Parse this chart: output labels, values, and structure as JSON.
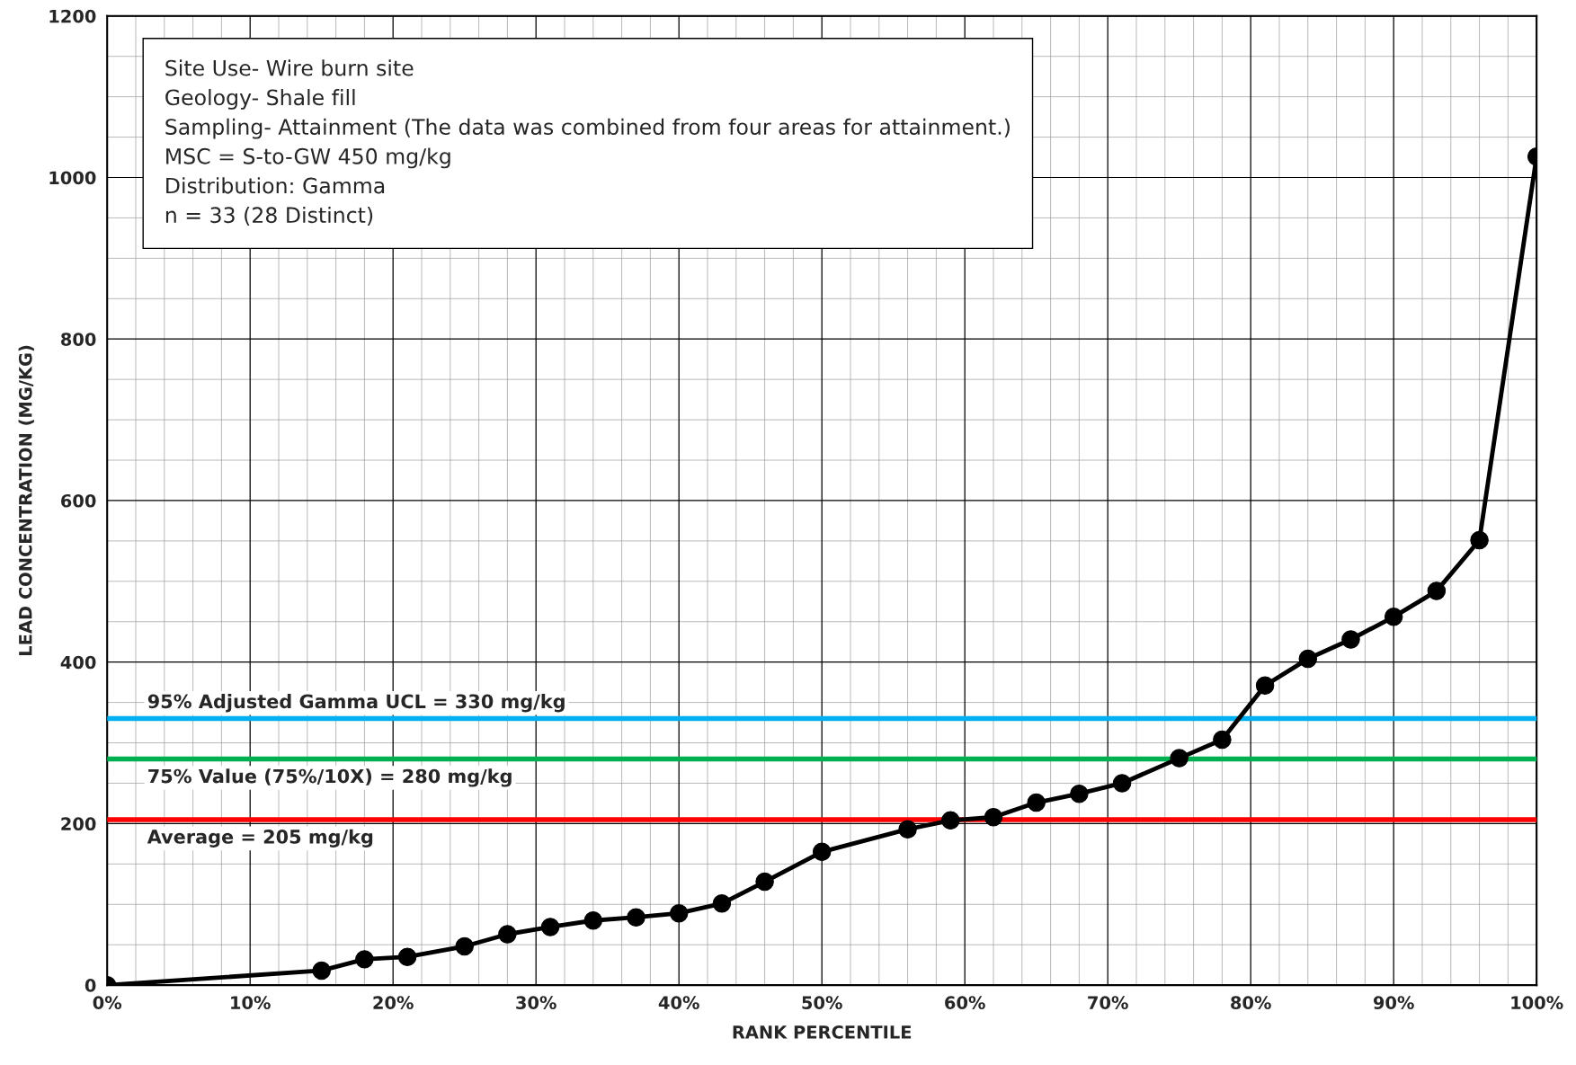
{
  "chart_data": {
    "type": "line",
    "xlabel": "RANK PERCENTILE",
    "ylabel": "LEAD CONCENTRATION (MG/KG)",
    "x": [
      0,
      15,
      18,
      21,
      25,
      28,
      31,
      34,
      37,
      40,
      43,
      46,
      50,
      56,
      59,
      62,
      65,
      68,
      71,
      75,
      78,
      81,
      84,
      87,
      90,
      93,
      96,
      100
    ],
    "series": [
      {
        "color": "#000000",
        "values": [
          0,
          18,
          32,
          35,
          48,
          63,
          72,
          80,
          84,
          89,
          101,
          128,
          165,
          193,
          204,
          208,
          226,
          237,
          250,
          281,
          304,
          371,
          404,
          428,
          456,
          488,
          551,
          1026
        ]
      }
    ],
    "xlim": [
      0,
      100
    ],
    "ylim": [
      0,
      1200
    ],
    "xticks": [
      {
        "value": 0,
        "label": "0%"
      },
      {
        "value": 10,
        "label": "10%"
      },
      {
        "value": 20,
        "label": "20%"
      },
      {
        "value": 30,
        "label": "30%"
      },
      {
        "value": 40,
        "label": "40%"
      },
      {
        "value": 50,
        "label": "50%"
      },
      {
        "value": 60,
        "label": "60%"
      },
      {
        "value": 70,
        "label": "70%"
      },
      {
        "value": 80,
        "label": "80%"
      },
      {
        "value": 90,
        "label": "90%"
      },
      {
        "value": 100,
        "label": "100%"
      }
    ],
    "yticks": [
      0,
      200,
      400,
      600,
      800,
      1000,
      1200
    ],
    "grid": true,
    "marker": "circle",
    "line_style": "solid",
    "ref_lines": [
      {
        "axis": "y",
        "value": 330,
        "label": "95% Adjusted Gamma UCL = 330 mg/kg",
        "color": "#00b0f0"
      },
      {
        "axis": "y",
        "value": 280,
        "label": "75% Value (75%/10X) = 280 mg/kg",
        "color": "#00b050"
      },
      {
        "axis": "y",
        "value": 205,
        "label": "Average = 205 mg/kg",
        "color": "#ff0000"
      }
    ],
    "annotations": [
      "Site Use- Wire burn site\nGeology- Shale fill\nSampling- Attainment (The data was combined from four areas for attainment.)\nMSC = S-to-GW 450 mg/kg\nDistribution: Gamma\nn = 33 (28 Distinct)"
    ]
  }
}
